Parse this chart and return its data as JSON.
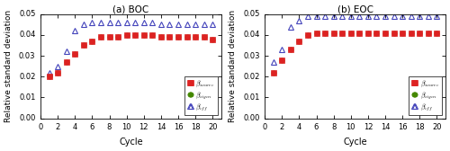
{
  "title_left": "(a) BOC",
  "title_right": "(b) EOC",
  "xlabel": "Cycle",
  "ylabel": "Relative standard deviation",
  "xlim": [
    0,
    21
  ],
  "ylim": [
    0.0,
    0.05
  ],
  "yticks": [
    0.0,
    0.01,
    0.02,
    0.03,
    0.04,
    0.05
  ],
  "xticks": [
    0,
    2,
    4,
    6,
    8,
    10,
    12,
    14,
    16,
    18,
    20
  ],
  "cycles": [
    1,
    2,
    3,
    4,
    5,
    6,
    7,
    8,
    9,
    10,
    11,
    12,
    13,
    14,
    15,
    16,
    17,
    18,
    19,
    20
  ],
  "boc_source": [
    0.02,
    0.022,
    0.027,
    0.031,
    0.035,
    0.037,
    0.039,
    0.039,
    0.039,
    0.04,
    0.04,
    0.04,
    0.04,
    0.039,
    0.039,
    0.039,
    0.039,
    0.039,
    0.039,
    0.038
  ],
  "boc_eigen": [
    0.02,
    0.022,
    0.027,
    0.031,
    0.035,
    0.037,
    0.039,
    0.039,
    0.039,
    0.04,
    0.04,
    0.04,
    0.04,
    0.039,
    0.039,
    0.039,
    0.039,
    0.039,
    0.039,
    0.038
  ],
  "boc_beff": [
    0.022,
    0.025,
    0.032,
    0.042,
    0.045,
    0.046,
    0.046,
    0.046,
    0.046,
    0.046,
    0.046,
    0.046,
    0.046,
    0.045,
    0.045,
    0.045,
    0.045,
    0.045,
    0.045,
    0.045
  ],
  "eoc_source": [
    0.022,
    0.028,
    0.033,
    0.037,
    0.04,
    0.041,
    0.041,
    0.041,
    0.041,
    0.041,
    0.041,
    0.041,
    0.041,
    0.041,
    0.041,
    0.041,
    0.041,
    0.041,
    0.041,
    0.041
  ],
  "eoc_eigen": [
    0.022,
    0.028,
    0.033,
    0.037,
    0.04,
    0.041,
    0.041,
    0.041,
    0.041,
    0.041,
    0.041,
    0.041,
    0.041,
    0.041,
    0.041,
    0.041,
    0.041,
    0.041,
    0.041,
    0.041
  ],
  "eoc_beff": [
    0.027,
    0.033,
    0.044,
    0.047,
    0.049,
    0.049,
    0.049,
    0.049,
    0.049,
    0.049,
    0.049,
    0.049,
    0.049,
    0.049,
    0.049,
    0.049,
    0.049,
    0.049,
    0.049,
    0.049
  ],
  "color_source": "#dd2222",
  "color_eigen": "#448800",
  "color_beff_edge": "#4444bb",
  "legend_source": "$\\beta_{source}$",
  "legend_eigen": "$\\beta_{eigen}$",
  "legend_beff": "$\\beta_{eff}$",
  "fig_width": 5.0,
  "fig_height": 1.68,
  "dpi": 100
}
